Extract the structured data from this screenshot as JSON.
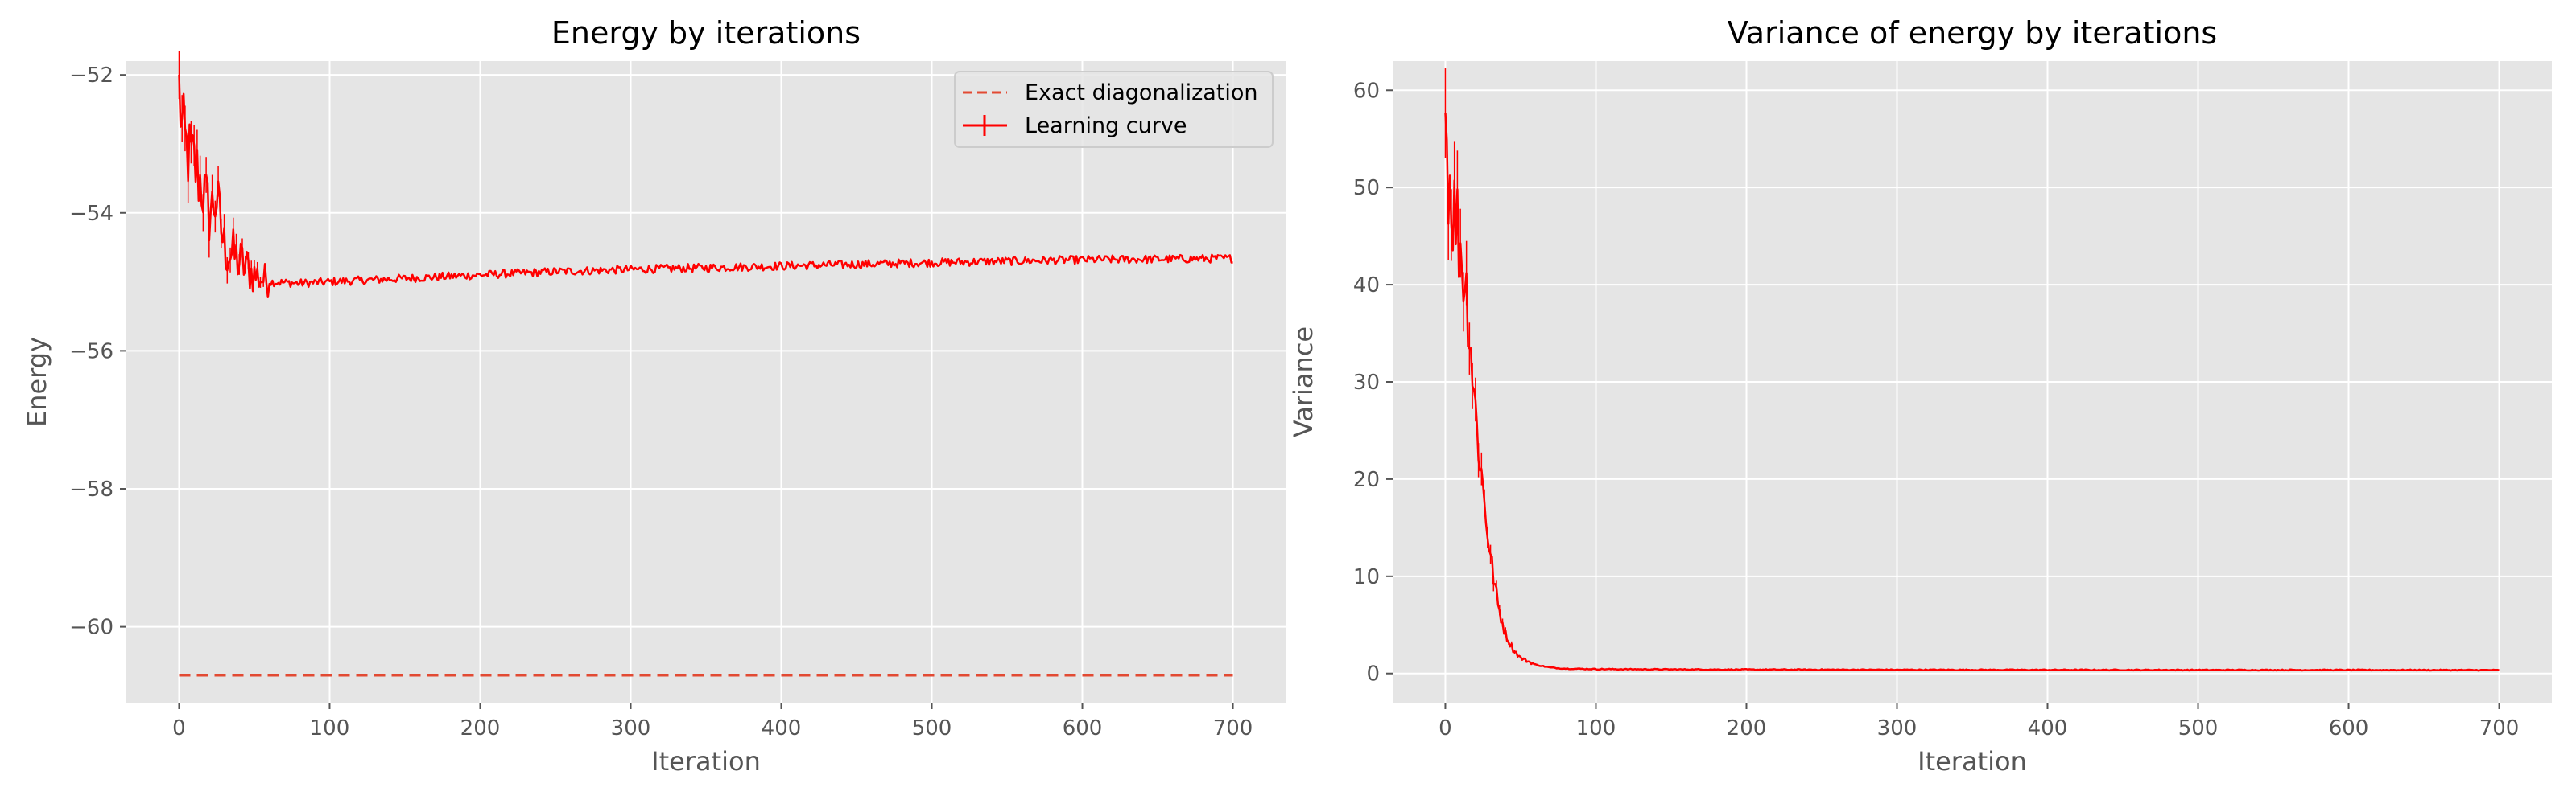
{
  "chart_data": [
    {
      "type": "line",
      "title": "Energy by iterations",
      "xlabel": "Iteration",
      "ylabel": "Energy",
      "xlim": [
        -35,
        735
      ],
      "ylim": [
        -61.1,
        -51.8
      ],
      "xticks": [
        0,
        100,
        200,
        300,
        400,
        500,
        600,
        700
      ],
      "yticks": [
        -60,
        -58,
        -56,
        -54,
        -52
      ],
      "grid": true,
      "legend_position": "top-right",
      "legend": [
        "Exact diagonalization",
        "Learning curve"
      ],
      "series": [
        {
          "name": "Exact diagonalization",
          "style": "dashed",
          "color": "#e24a33",
          "x": [
            0,
            700
          ],
          "y": [
            -60.7,
            -60.7
          ]
        },
        {
          "name": "Learning curve",
          "style": "solid-with-errorbars",
          "color": "#ff0000",
          "x": [
            0,
            2,
            5,
            10,
            15,
            20,
            25,
            30,
            40,
            50,
            60,
            80,
            100,
            150,
            200,
            250,
            300,
            400,
            500,
            600,
            700
          ],
          "y": [
            -52.2,
            -52.8,
            -53.1,
            -53.3,
            -53.6,
            -54.0,
            -53.8,
            -54.5,
            -54.7,
            -54.9,
            -55.0,
            -55.02,
            -55.0,
            -54.95,
            -54.9,
            -54.85,
            -54.82,
            -54.77,
            -54.72,
            -54.68,
            -54.66
          ]
        }
      ]
    },
    {
      "type": "line",
      "title": "Variance of energy by iterations",
      "xlabel": "Iteration",
      "ylabel": "Variance",
      "xlim": [
        -35,
        735
      ],
      "ylim": [
        -3,
        63
      ],
      "xticks": [
        0,
        100,
        200,
        300,
        400,
        500,
        600,
        700
      ],
      "yticks": [
        0,
        10,
        20,
        30,
        40,
        50,
        60
      ],
      "grid": true,
      "series": [
        {
          "style": "solid-with-errorbars",
          "color": "#ff0000",
          "x": [
            0,
            2,
            5,
            8,
            10,
            15,
            20,
            25,
            30,
            35,
            40,
            45,
            50,
            60,
            70,
            80,
            100,
            150,
            200,
            300,
            400,
            500,
            600,
            700
          ],
          "y": [
            58.0,
            52.0,
            48.0,
            46.0,
            44.0,
            38.0,
            27.0,
            19.0,
            12.0,
            7.0,
            4.0,
            2.5,
            1.6,
            0.9,
            0.6,
            0.5,
            0.45,
            0.42,
            0.4,
            0.38,
            0.37,
            0.36,
            0.36,
            0.35
          ]
        }
      ]
    }
  ]
}
